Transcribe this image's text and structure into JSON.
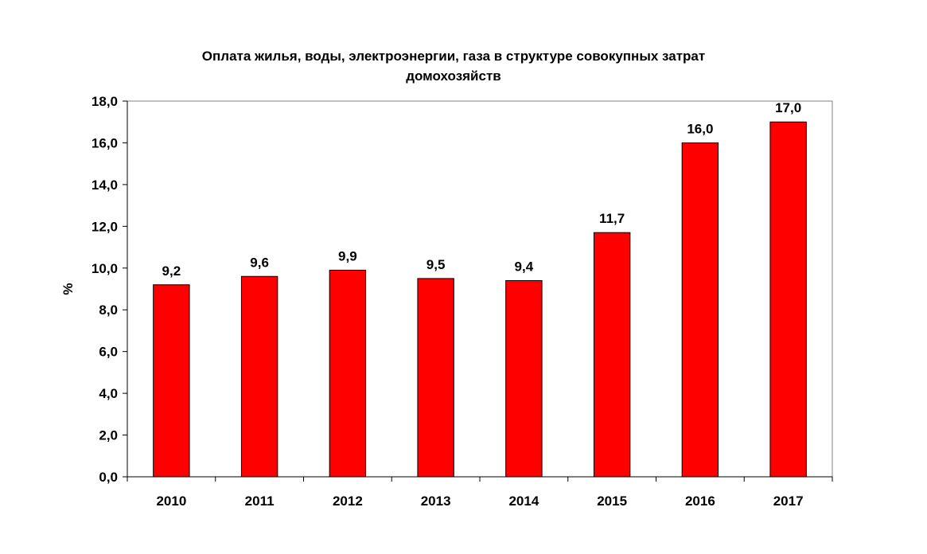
{
  "chart_data": {
    "type": "bar",
    "title_lines": [
      "Оплата жилья, воды, электроэнергии, газа в структуре совокупных затрат",
      "домохозяйств"
    ],
    "xlabel": "",
    "ylabel": "%",
    "categories": [
      "2010",
      "2011",
      "2012",
      "2013",
      "2014",
      "2015",
      "2016",
      "2017"
    ],
    "values": [
      9.2,
      9.6,
      9.9,
      9.5,
      9.4,
      11.7,
      16.0,
      17.0
    ],
    "data_labels": [
      "9,2",
      "9,6",
      "9,9",
      "9,5",
      "9,4",
      "11,7",
      "16,0",
      "17,0"
    ],
    "ylim": [
      0,
      18
    ],
    "y_ticks": [
      0,
      2,
      4,
      6,
      8,
      10,
      12,
      14,
      16,
      18
    ],
    "y_tick_labels": [
      "0,0",
      "2,0",
      "4,0",
      "6,0",
      "8,0",
      "10,0",
      "12,0",
      "14,0",
      "16,0",
      "18,0"
    ],
    "grid": false,
    "legend": "none",
    "bar_color": "#ff0000",
    "bar_edge_color": "#000000"
  }
}
